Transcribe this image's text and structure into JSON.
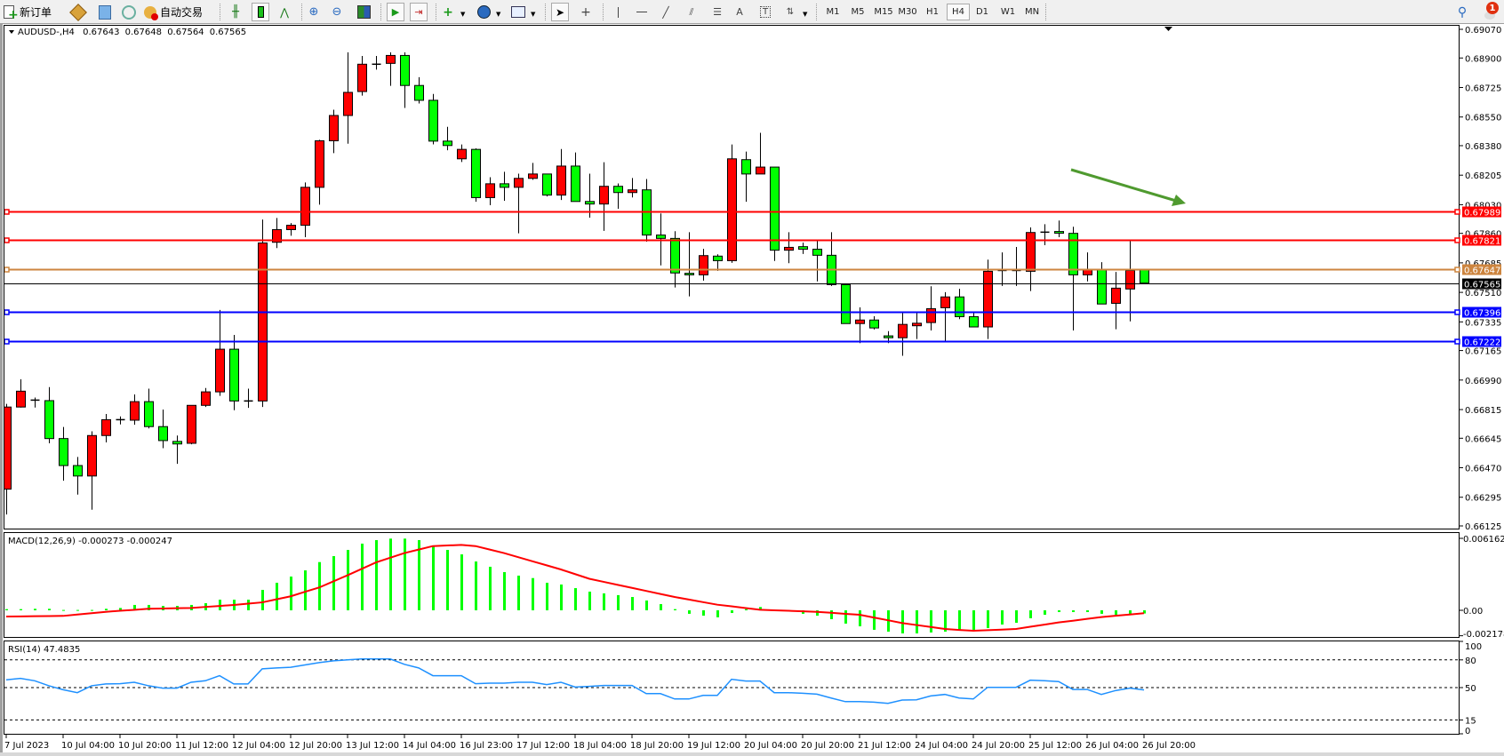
{
  "toolbar": {
    "new_order_label": "新订单",
    "auto_trading_label": "自动交易",
    "timeframes": [
      "M1",
      "M5",
      "M15",
      "M30",
      "H1",
      "H4",
      "D1",
      "W1",
      "MN"
    ],
    "active_timeframe": "H4",
    "notification_count": "1",
    "icons": [
      "new-order-icon",
      "market-watch-icon",
      "navigator-icon",
      "signals-icon",
      "auto-trading-icon",
      "bar-chart-icon",
      "candlestick-icon",
      "line-chart-icon",
      "zoom-in-icon",
      "zoom-out-icon",
      "tile-windows-icon",
      "auto-scroll-icon",
      "chart-shift-icon",
      "indicators-icon",
      "periods-icon",
      "templates-icon",
      "cursor-icon",
      "crosshair-icon",
      "vertical-line-icon",
      "horizontal-line-icon",
      "trendline-icon",
      "equidistant-channel-icon",
      "fibonacci-icon",
      "text-icon",
      "text-label-icon",
      "arrows-icon",
      "search-icon",
      "notification-icon"
    ]
  },
  "chart_header": {
    "symbol": "AUDUSD-,H4",
    "open": "0.67643",
    "high": "0.67648",
    "low": "0.67564",
    "close": "0.67565"
  },
  "chart_data": {
    "type": "candlestick",
    "bull_color": "#ff0000",
    "bear_color": "#00ff00",
    "candles_ohlc": [
      [
        0.66343,
        0.66849,
        0.66193,
        0.6683
      ],
      [
        0.6683,
        0.66995,
        0.66827,
        0.66924
      ],
      [
        0.66871,
        0.66886,
        0.66827,
        0.66871
      ],
      [
        0.66868,
        0.66948,
        0.66615,
        0.66643
      ],
      [
        0.66643,
        0.66712,
        0.66393,
        0.66483
      ],
      [
        0.66483,
        0.66534,
        0.66311,
        0.66421
      ],
      [
        0.66421,
        0.66686,
        0.66221,
        0.66661
      ],
      [
        0.66661,
        0.66789,
        0.6662,
        0.66755
      ],
      [
        0.66755,
        0.66774,
        0.66727,
        0.66755
      ],
      [
        0.66752,
        0.66905,
        0.66725,
        0.66862
      ],
      [
        0.66862,
        0.66939,
        0.66703,
        0.66714
      ],
      [
        0.66714,
        0.66815,
        0.66586,
        0.66631
      ],
      [
        0.66626,
        0.66661,
        0.66493,
        0.66611
      ],
      [
        0.66615,
        0.6684,
        0.66609,
        0.6684
      ],
      [
        0.6684,
        0.66943,
        0.6683,
        0.6692
      ],
      [
        0.6692,
        0.67406,
        0.66896,
        0.67173
      ],
      [
        0.67173,
        0.67258,
        0.66811,
        0.66866
      ],
      [
        0.66866,
        0.66939,
        0.66825,
        0.66866
      ],
      [
        0.66866,
        0.67942,
        0.6683,
        0.67803
      ],
      [
        0.67807,
        0.67951,
        0.67773,
        0.67882
      ],
      [
        0.67882,
        0.67921,
        0.67846,
        0.67908
      ],
      [
        0.67908,
        0.68162,
        0.67837,
        0.68133
      ],
      [
        0.68133,
        0.68415,
        0.6803,
        0.68409
      ],
      [
        0.68409,
        0.68593,
        0.68336,
        0.68559
      ],
      [
        0.68559,
        0.68934,
        0.68392,
        0.68696
      ],
      [
        0.68701,
        0.68912,
        0.68677,
        0.68863
      ],
      [
        0.68863,
        0.68912,
        0.68831,
        0.68863
      ],
      [
        0.68868,
        0.68934,
        0.68735,
        0.68915
      ],
      [
        0.68915,
        0.68934,
        0.68604,
        0.68737
      ],
      [
        0.68737,
        0.68786,
        0.6863,
        0.68649
      ],
      [
        0.68649,
        0.68687,
        0.68388,
        0.68407
      ],
      [
        0.68407,
        0.68492,
        0.68353,
        0.68381
      ],
      [
        0.68302,
        0.68387,
        0.68283,
        0.68358
      ],
      [
        0.68358,
        0.68364,
        0.68047,
        0.68072
      ],
      [
        0.68072,
        0.68193,
        0.68027,
        0.68154
      ],
      [
        0.68154,
        0.68225,
        0.68053,
        0.68133
      ],
      [
        0.68133,
        0.68214,
        0.6786,
        0.68186
      ],
      [
        0.68186,
        0.68278,
        0.68178,
        0.68212
      ],
      [
        0.68212,
        0.68212,
        0.68079,
        0.68087
      ],
      [
        0.68087,
        0.6836,
        0.68058,
        0.68259
      ],
      [
        0.68259,
        0.6834,
        0.68049,
        0.68049
      ],
      [
        0.68049,
        0.68214,
        0.67953,
        0.68034
      ],
      [
        0.68034,
        0.68282,
        0.67875,
        0.68139
      ],
      [
        0.68139,
        0.68156,
        0.68006,
        0.68102
      ],
      [
        0.68102,
        0.68188,
        0.68073,
        0.68118
      ],
      [
        0.68118,
        0.68182,
        0.67811,
        0.6785
      ],
      [
        0.6785,
        0.67978,
        0.6767,
        0.6783
      ],
      [
        0.6783,
        0.67873,
        0.67539,
        0.67625
      ],
      [
        0.67623,
        0.67867,
        0.67486,
        0.67614
      ],
      [
        0.67614,
        0.67768,
        0.6758,
        0.67728
      ],
      [
        0.67725,
        0.67736,
        0.67638,
        0.67698
      ],
      [
        0.67698,
        0.68387,
        0.67685,
        0.68302
      ],
      [
        0.68297,
        0.68345,
        0.68047,
        0.68212
      ],
      [
        0.68212,
        0.68456,
        0.68212,
        0.68253
      ],
      [
        0.68253,
        0.68253,
        0.67696,
        0.6776
      ],
      [
        0.6776,
        0.67867,
        0.67683,
        0.67777
      ],
      [
        0.67781,
        0.67805,
        0.67738,
        0.67766
      ],
      [
        0.67766,
        0.6782,
        0.67575,
        0.6773
      ],
      [
        0.6773,
        0.67867,
        0.67548,
        0.67556
      ],
      [
        0.67556,
        0.67556,
        0.67325,
        0.67325
      ],
      [
        0.67325,
        0.67421,
        0.67209,
        0.67346
      ],
      [
        0.67346,
        0.67368,
        0.6729,
        0.67299
      ],
      [
        0.67252,
        0.6728,
        0.67209,
        0.67241
      ],
      [
        0.67241,
        0.67393,
        0.67134,
        0.6732
      ],
      [
        0.67312,
        0.67393,
        0.67233,
        0.67327
      ],
      [
        0.67331,
        0.67546,
        0.67284,
        0.67413
      ],
      [
        0.67419,
        0.67511,
        0.67215,
        0.67483
      ],
      [
        0.67483,
        0.67531,
        0.67351,
        0.67366
      ],
      [
        0.67366,
        0.67393,
        0.67305,
        0.67305
      ],
      [
        0.67305,
        0.67704,
        0.67233,
        0.67635
      ],
      [
        0.67635,
        0.67747,
        0.67548,
        0.6764
      ],
      [
        0.6764,
        0.67779,
        0.67548,
        0.67635
      ],
      [
        0.67635,
        0.67895,
        0.67518,
        0.67865
      ],
      [
        0.67867,
        0.67914,
        0.6779,
        0.67867
      ],
      [
        0.67871,
        0.67936,
        0.67837,
        0.67861
      ],
      [
        0.6786,
        0.67899,
        0.67284,
        0.67614
      ],
      [
        0.67614,
        0.67747,
        0.67575,
        0.67644
      ],
      [
        0.67644,
        0.67689,
        0.67441,
        0.67441
      ],
      [
        0.67445,
        0.67631,
        0.67291,
        0.67535
      ],
      [
        0.6753,
        0.67815,
        0.67338,
        0.6764
      ],
      [
        0.67643,
        0.67648,
        0.67564,
        0.67565
      ]
    ],
    "price_range": [
      0.66125,
      0.6907
    ],
    "price_axis_ticks": [
      "0.69070",
      "0.68900",
      "0.68725",
      "0.68550",
      "0.68380",
      "0.68205",
      "0.68030",
      "0.67860",
      "0.67685",
      "0.67510",
      "0.67335",
      "0.67165",
      "0.66990",
      "0.66815",
      "0.66645",
      "0.66470",
      "0.66295",
      "0.66125"
    ],
    "price_levels": [
      {
        "price": "0.67989",
        "color": "#ff0000"
      },
      {
        "price": "0.67821",
        "color": "#ff0000"
      },
      {
        "price": "0.67647",
        "color": "#cd853f"
      },
      {
        "price": "0.67565",
        "color": "#000000",
        "type": "bid"
      },
      {
        "price": "0.67396",
        "color": "#0000ff"
      },
      {
        "price": "0.67222",
        "color": "#0000ff"
      }
    ],
    "annotation_arrow": {
      "color": "#4f9a2f",
      "direction": "down-right"
    },
    "x_tick_labels": [
      "7 Jul 2023",
      "10 Jul 04:00",
      "10 Jul 20:00",
      "11 Jul 12:00",
      "12 Jul 04:00",
      "12 Jul 20:00",
      "13 Jul 12:00",
      "14 Jul 04:00",
      "16 Jul 23:00",
      "17 Jul 12:00",
      "18 Jul 04:00",
      "18 Jul 20:00",
      "19 Jul 12:00",
      "20 Jul 04:00",
      "20 Jul 20:00",
      "21 Jul 12:00",
      "24 Jul 04:00",
      "24 Jul 20:00",
      "25 Jul 12:00",
      "26 Jul 04:00",
      "26 Jul 20:00"
    ],
    "x_tick_every_bars": 4,
    "macd": {
      "label": "MACD(12,26,9) -0.000273 -0.000247",
      "histogram_color": "#00ff00",
      "signal_color": "#ff0000",
      "range": [
        -0.002178,
        0.006162
      ],
      "axis_ticks": [
        "0.006162",
        "0.00",
        "-0.002178"
      ],
      "histogram": [
        0.0001,
        0.0001,
        0.00013,
        0.00013,
        3e-05,
        3e-05,
        3e-05,
        0.00013,
        0.0002,
        0.00046,
        0.00046,
        0.00038,
        0.00038,
        0.00046,
        0.00061,
        0.00091,
        0.00091,
        0.00091,
        0.00175,
        0.00236,
        0.00289,
        0.00342,
        0.00413,
        0.00464,
        0.00517,
        0.00571,
        0.00601,
        0.00614,
        0.00614,
        0.00601,
        0.00555,
        0.00517,
        0.00479,
        0.00418,
        0.00373,
        0.00327,
        0.00297,
        0.00276,
        0.00236,
        0.00221,
        0.0019,
        0.0016,
        0.00145,
        0.0013,
        0.00114,
        0.00084,
        0.00053,
        0.0001,
        -0.0003,
        -0.00046,
        -0.0006,
        -0.00023,
        0.0001,
        0.00028,
        0.0,
        -8e-05,
        -0.0003,
        -0.00046,
        -0.00076,
        -0.00114,
        -0.00137,
        -0.00167,
        -0.00183,
        -0.00198,
        -0.00198,
        -0.0019,
        -0.00183,
        -0.00167,
        -0.00167,
        -0.00152,
        -0.00122,
        -0.00107,
        -0.00068,
        -0.00038,
        -0.00015,
        -0.00015,
        -0.00015,
        -0.0003,
        -0.00038,
        -0.0003,
        -0.000273
      ],
      "signal": [
        -0.00053,
        -0.00052,
        -0.0005,
        -0.00049,
        -0.00048,
        -0.00036,
        -0.00025,
        -0.00013,
        -4e-05,
        4e-05,
        0.00013,
        0.00015,
        0.00018,
        0.0002,
        0.00029,
        0.00037,
        0.00046,
        0.00057,
        0.00068,
        0.00094,
        0.0012,
        0.00158,
        0.00195,
        0.00248,
        0.003,
        0.00355,
        0.0041,
        0.0045,
        0.0049,
        0.0052,
        0.0055,
        0.00555,
        0.0056,
        0.0055,
        0.0052,
        0.0049,
        0.00455,
        0.0042,
        0.00385,
        0.0035,
        0.0031,
        0.0027,
        0.00244,
        0.00218,
        0.00192,
        0.00166,
        0.0014,
        0.00114,
        0.00092,
        0.0007,
        0.00048,
        0.00034,
        0.00019,
        5e-05,
        0.0,
        -4e-05,
        -9e-05,
        -0.00013,
        -0.00021,
        -0.0003,
        -0.00038,
        -0.00062,
        -0.00085,
        -0.00109,
        -0.00126,
        -0.00143,
        -0.0016,
        -0.00168,
        -0.00175,
        -0.0017,
        -0.00165,
        -0.0016,
        -0.00141,
        -0.00123,
        -0.00104,
        -0.00089,
        -0.00073,
        -0.00058,
        -0.00047,
        -0.00036,
        -0.000247
      ]
    },
    "rsi": {
      "label": "RSI(14) 47.4835",
      "line_color": "#1e90ff",
      "range": [
        0,
        100
      ],
      "levels": [
        80,
        50,
        15
      ],
      "axis_ticks": [
        "100",
        "80",
        "50",
        "15",
        "0"
      ],
      "values": [
        58.4,
        60,
        57.4,
        52,
        47.7,
        44.5,
        52,
        54,
        54.2,
        55.8,
        52,
        49.4,
        49.4,
        55.8,
        57.4,
        62.9,
        54,
        54,
        70.3,
        71.3,
        72,
        74.5,
        77,
        79,
        80,
        81,
        81,
        81,
        75.2,
        71.3,
        62.9,
        62.9,
        62.9,
        54.2,
        54.8,
        54.8,
        55.8,
        55.8,
        53.2,
        55.8,
        50.6,
        51.3,
        52.3,
        52.3,
        52.3,
        43.5,
        43.5,
        37.7,
        37.7,
        41.6,
        41.6,
        59,
        57.1,
        57.1,
        44.5,
        44.5,
        43.9,
        42.9,
        38.7,
        34.8,
        34.8,
        34.2,
        32.9,
        36.5,
        36.8,
        41,
        42.6,
        38.7,
        37.7,
        50.3,
        50.3,
        50.3,
        58,
        57.4,
        56.5,
        48,
        48,
        42.6,
        46.8,
        49.4,
        47.4835
      ]
    }
  }
}
